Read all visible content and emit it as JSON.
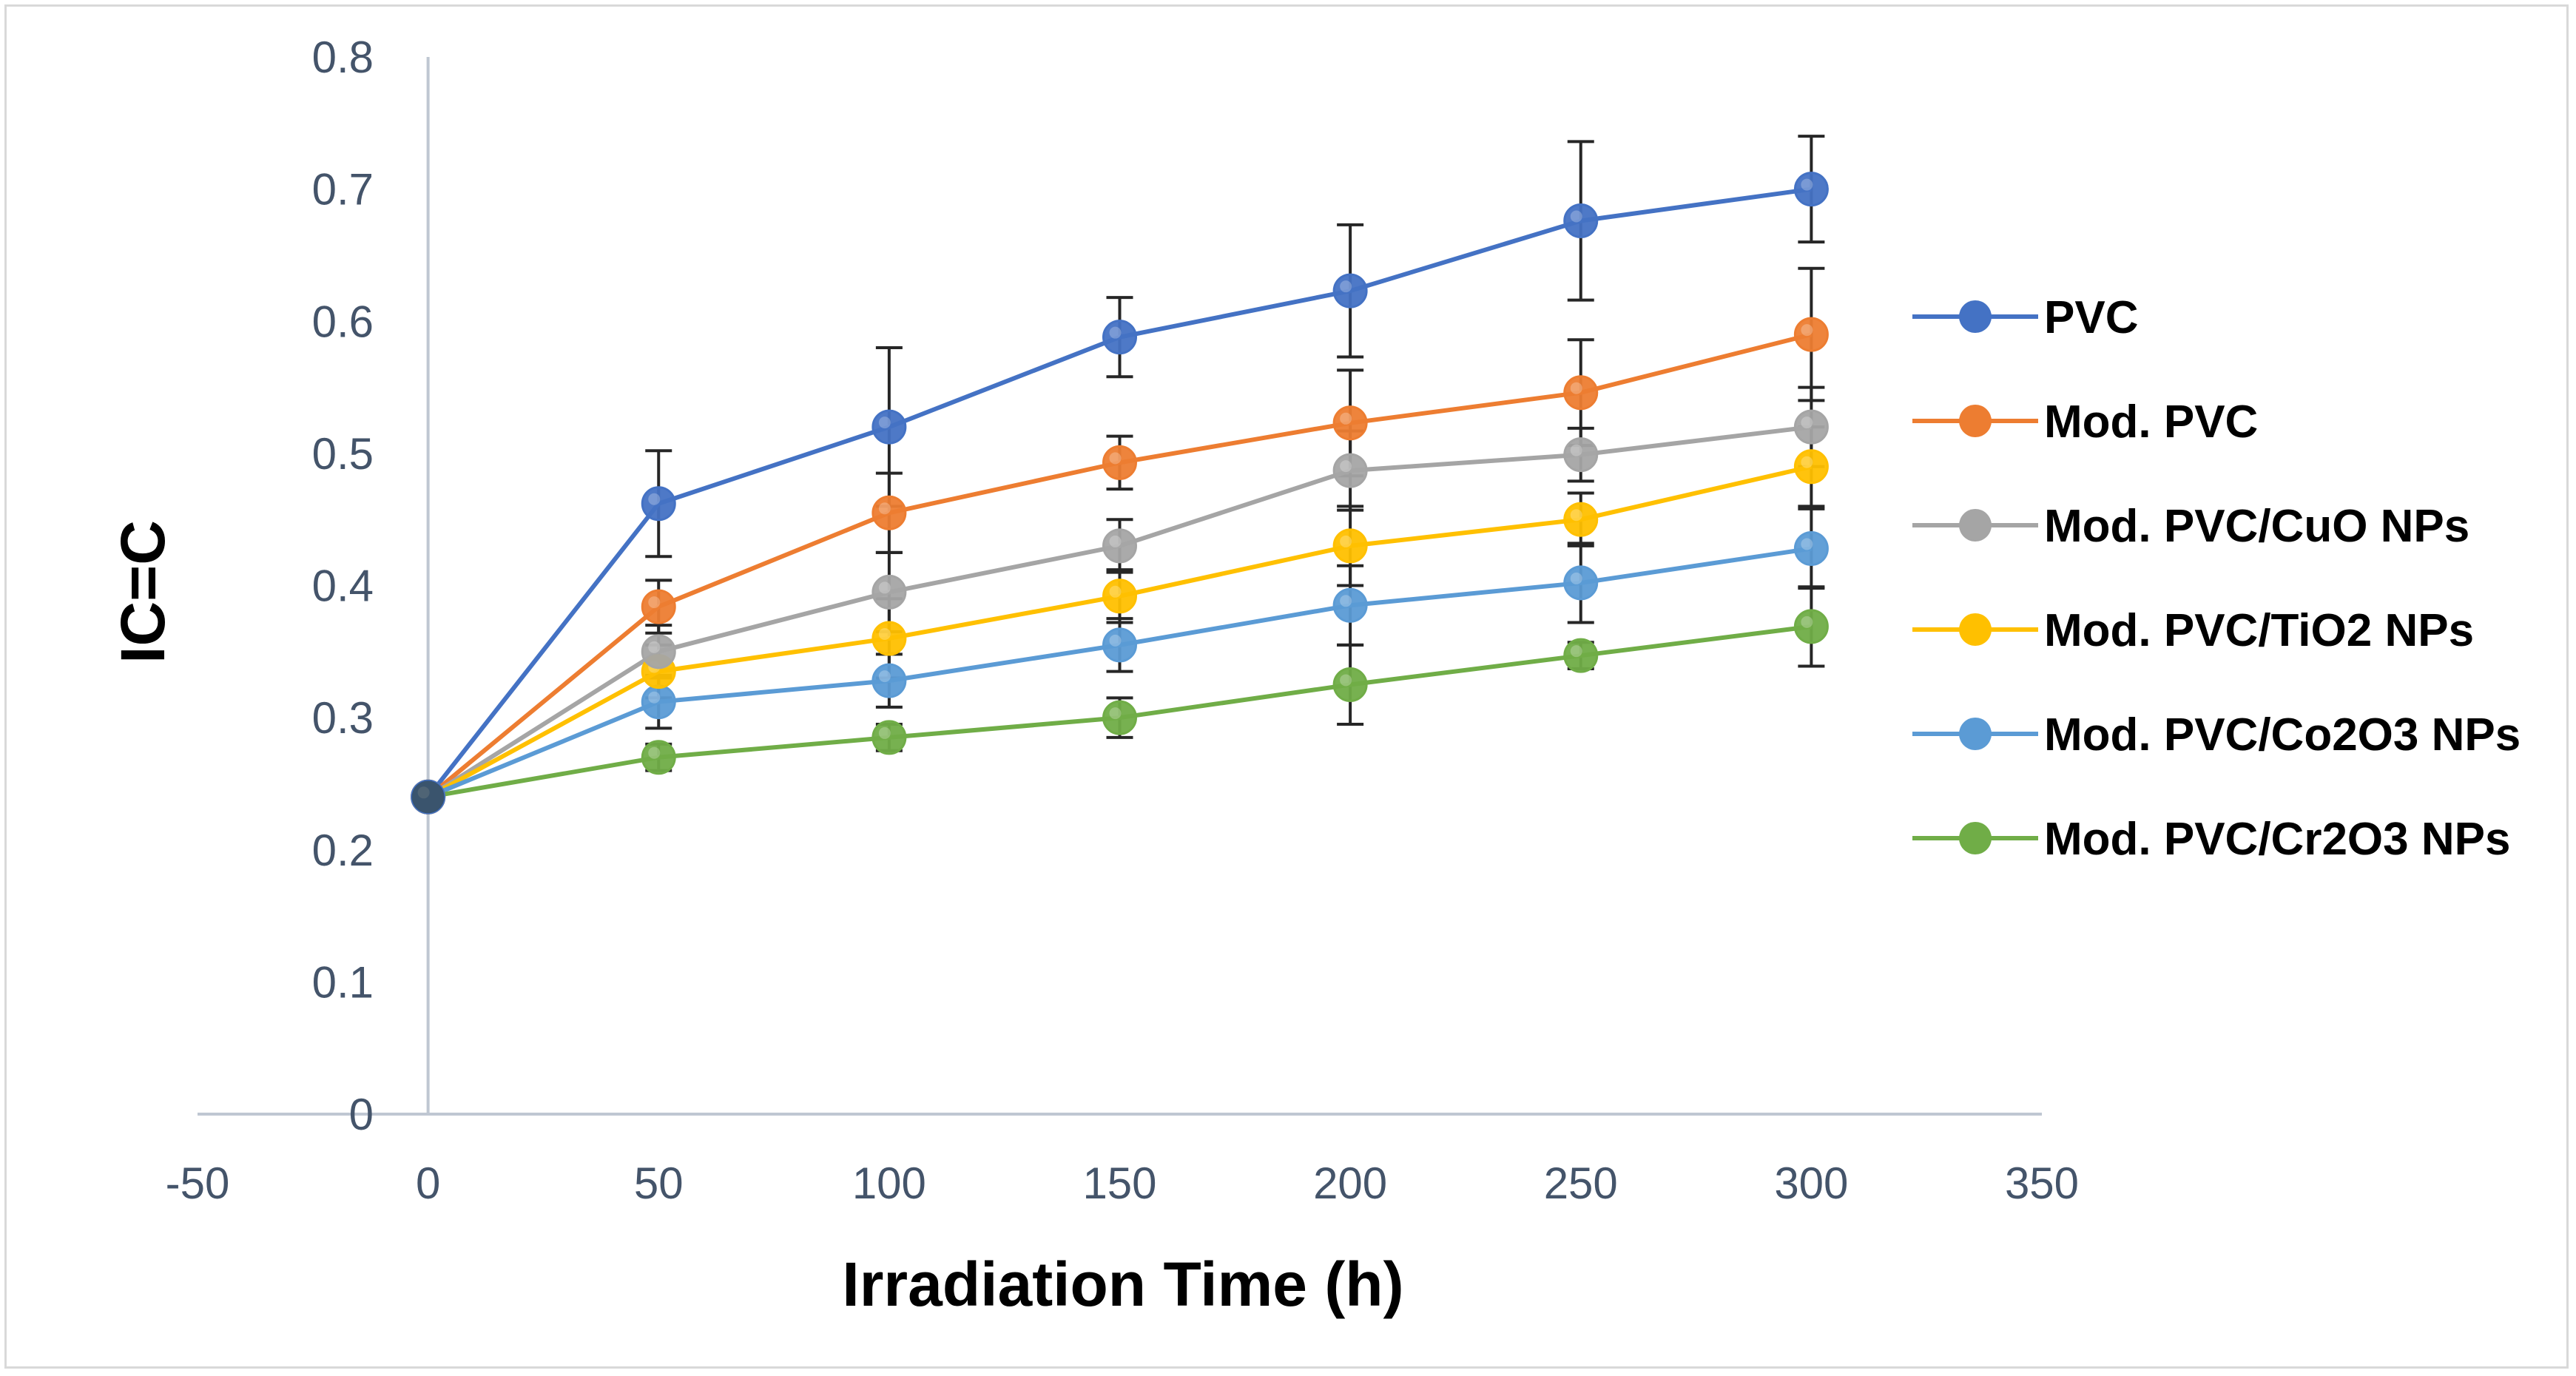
{
  "chart_data": {
    "type": "line",
    "title": "",
    "xlabel": "Irradiation Time (h)",
    "ylabel": "IC=C",
    "xlim": [
      -50,
      350
    ],
    "ylim": [
      0,
      0.8
    ],
    "xticks": [
      -50,
      0,
      50,
      100,
      150,
      200,
      250,
      300,
      350
    ],
    "yticks": [
      0,
      0.1,
      0.2,
      0.3,
      0.4,
      0.5,
      0.6,
      0.7,
      0.8
    ],
    "xtick_labels": [
      "-50",
      "0",
      "50",
      "100",
      "150",
      "200",
      "250",
      "300",
      "350"
    ],
    "ytick_labels": [
      "0",
      "0.1",
      "0.2",
      "0.3",
      "0.4",
      "0.5",
      "0.6",
      "0.7",
      "0.8"
    ],
    "grid": false,
    "legend_position": "right",
    "x": [
      0,
      50,
      100,
      150,
      200,
      250,
      300
    ],
    "series": [
      {
        "name": "PVC",
        "color": "#4472c4",
        "values": [
          0.24,
          0.462,
          0.52,
          0.588,
          0.623,
          0.676,
          0.7
        ],
        "errors": [
          0,
          0.04,
          0.06,
          0.03,
          0.05,
          0.06,
          0.04
        ]
      },
      {
        "name": "Mod. PVC",
        "color": "#ed7d31",
        "values": [
          0.24,
          0.384,
          0.455,
          0.493,
          0.523,
          0.546,
          0.59
        ],
        "errors": [
          0,
          0.02,
          0.03,
          0.02,
          0.04,
          0.04,
          0.05
        ]
      },
      {
        "name": "Mod. PVC/CuO NPs",
        "color": "#a5a5a5",
        "values": [
          0.24,
          0.35,
          0.395,
          0.43,
          0.487,
          0.499,
          0.52
        ],
        "errors": [
          0,
          0.02,
          0.03,
          0.02,
          0.03,
          0.02,
          0.03
        ]
      },
      {
        "name": "Mod. PVC/TiO2 NPs",
        "color": "#ffc000",
        "values": [
          0.24,
          0.335,
          0.36,
          0.392,
          0.43,
          0.45,
          0.49
        ],
        "errors": [
          0,
          0.02,
          0.03,
          0.02,
          0.03,
          0.02,
          0.03
        ]
      },
      {
        "name": "Mod. PVC/Co2O3 NPs",
        "color": "#5b9bd5",
        "values": [
          0.24,
          0.312,
          0.328,
          0.355,
          0.385,
          0.402,
          0.428
        ],
        "errors": [
          0,
          0.02,
          0.02,
          0.02,
          0.03,
          0.03,
          0.03
        ]
      },
      {
        "name": "Mod. PVC/Cr2O3 NPs",
        "color": "#70ad47",
        "values": [
          0.24,
          0.27,
          0.285,
          0.3,
          0.325,
          0.347,
          0.369
        ],
        "errors": [
          0,
          0.01,
          0.01,
          0.015,
          0.03,
          0.01,
          0.03
        ]
      }
    ],
    "axis_color": "#bfc7d2",
    "errorbar_color": "#262626"
  }
}
